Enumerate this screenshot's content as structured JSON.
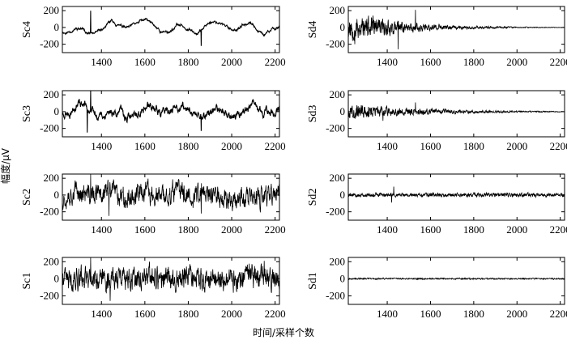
{
  "ylabel": "幅度/μV",
  "xlabel": "时间/采样个数",
  "chart_data": [
    {
      "type": "line",
      "ylabel": "Sc4",
      "column": "left",
      "row": 0,
      "xlim": [
        1220,
        2220
      ],
      "ylim": [
        -300,
        250
      ],
      "xticks": [
        1400,
        1600,
        1800,
        2000,
        2200
      ],
      "yticks": [
        -200,
        0,
        200
      ],
      "signal": {
        "amplitude": 90,
        "roughness": 0.08,
        "decay": 0.0,
        "seed": 11
      },
      "spikes": [
        {
          "x": 1350,
          "y": 200
        },
        {
          "x": 1860,
          "y": -220
        }
      ]
    },
    {
      "type": "line",
      "ylabel": "Sc3",
      "column": "left",
      "row": 1,
      "xlim": [
        1220,
        2220
      ],
      "ylim": [
        -300,
        250
      ],
      "xticks": [
        1400,
        1600,
        1800,
        2000,
        2200
      ],
      "yticks": [
        -200,
        0,
        200
      ],
      "signal": {
        "amplitude": 110,
        "roughness": 0.3,
        "decay": 0.0,
        "seed": 23
      },
      "spikes": [
        {
          "x": 1350,
          "y": 260
        },
        {
          "x": 1335,
          "y": -250
        },
        {
          "x": 1860,
          "y": -230
        }
      ]
    },
    {
      "type": "line",
      "ylabel": "Sc2",
      "column": "left",
      "row": 2,
      "xlim": [
        1220,
        2220
      ],
      "ylim": [
        -300,
        250
      ],
      "xticks": [
        1400,
        1600,
        1800,
        2000,
        2200
      ],
      "yticks": [
        -200,
        0,
        200
      ],
      "signal": {
        "amplitude": 150,
        "roughness": 0.7,
        "decay": 0.0,
        "seed": 37
      },
      "spikes": [
        {
          "x": 1350,
          "y": 270
        },
        {
          "x": 1435,
          "y": -250
        },
        {
          "x": 1860,
          "y": -220
        }
      ]
    },
    {
      "type": "line",
      "ylabel": "Sc1",
      "column": "left",
      "row": 3,
      "xlim": [
        1220,
        2220
      ],
      "ylim": [
        -300,
        250
      ],
      "xticks": [
        1400,
        1600,
        1800,
        2000,
        2200
      ],
      "yticks": [
        -200,
        0,
        200
      ],
      "signal": {
        "amplitude": 150,
        "roughness": 0.75,
        "decay": 0.0,
        "seed": 41
      },
      "spikes": [
        {
          "x": 1350,
          "y": 270
        },
        {
          "x": 1440,
          "y": -260
        },
        {
          "x": 2150,
          "y": 210
        }
      ]
    },
    {
      "type": "line",
      "ylabel": "Sd4",
      "column": "right",
      "row": 0,
      "xlim": [
        1220,
        2220
      ],
      "ylim": [
        -300,
        250
      ],
      "xticks": [
        1400,
        1600,
        1800,
        2000,
        2200
      ],
      "yticks": [
        -200,
        0,
        200
      ],
      "signal": {
        "amplitude": 130,
        "roughness": 0.95,
        "decay": 0.004,
        "seed": 53
      },
      "spikes": [
        {
          "x": 1450,
          "y": -260
        },
        {
          "x": 1530,
          "y": 210
        },
        {
          "x": 1250,
          "y": -200
        }
      ]
    },
    {
      "type": "line",
      "ylabel": "Sd3",
      "column": "right",
      "row": 1,
      "xlim": [
        1220,
        2220
      ],
      "ylim": [
        -300,
        250
      ],
      "xticks": [
        1400,
        1600,
        1800,
        2000,
        2200
      ],
      "yticks": [
        -200,
        0,
        200
      ],
      "signal": {
        "amplitude": 75,
        "roughness": 1.0,
        "decay": 0.003,
        "seed": 67
      },
      "spikes": [
        {
          "x": 1530,
          "y": 110
        },
        {
          "x": 1380,
          "y": -110
        }
      ]
    },
    {
      "type": "line",
      "ylabel": "Sd2",
      "column": "right",
      "row": 2,
      "xlim": [
        1220,
        2220
      ],
      "ylim": [
        -300,
        250
      ],
      "xticks": [
        1400,
        1600,
        1800,
        2000,
        2200
      ],
      "yticks": [
        -200,
        0,
        200
      ],
      "signal": {
        "amplitude": 22,
        "roughness": 1.0,
        "decay": 0.0,
        "seed": 79
      },
      "spikes": [
        {
          "x": 1430,
          "y": 100
        },
        {
          "x": 1420,
          "y": -90
        }
      ]
    },
    {
      "type": "line",
      "ylabel": "Sd1",
      "column": "right",
      "row": 3,
      "xlim": [
        1220,
        2220
      ],
      "ylim": [
        -300,
        250
      ],
      "xticks": [
        1400,
        1600,
        1800,
        2000,
        2200
      ],
      "yticks": [
        -200,
        0,
        200
      ],
      "signal": {
        "amplitude": 8,
        "roughness": 1.0,
        "decay": 0.0,
        "seed": 97
      },
      "spikes": []
    }
  ]
}
